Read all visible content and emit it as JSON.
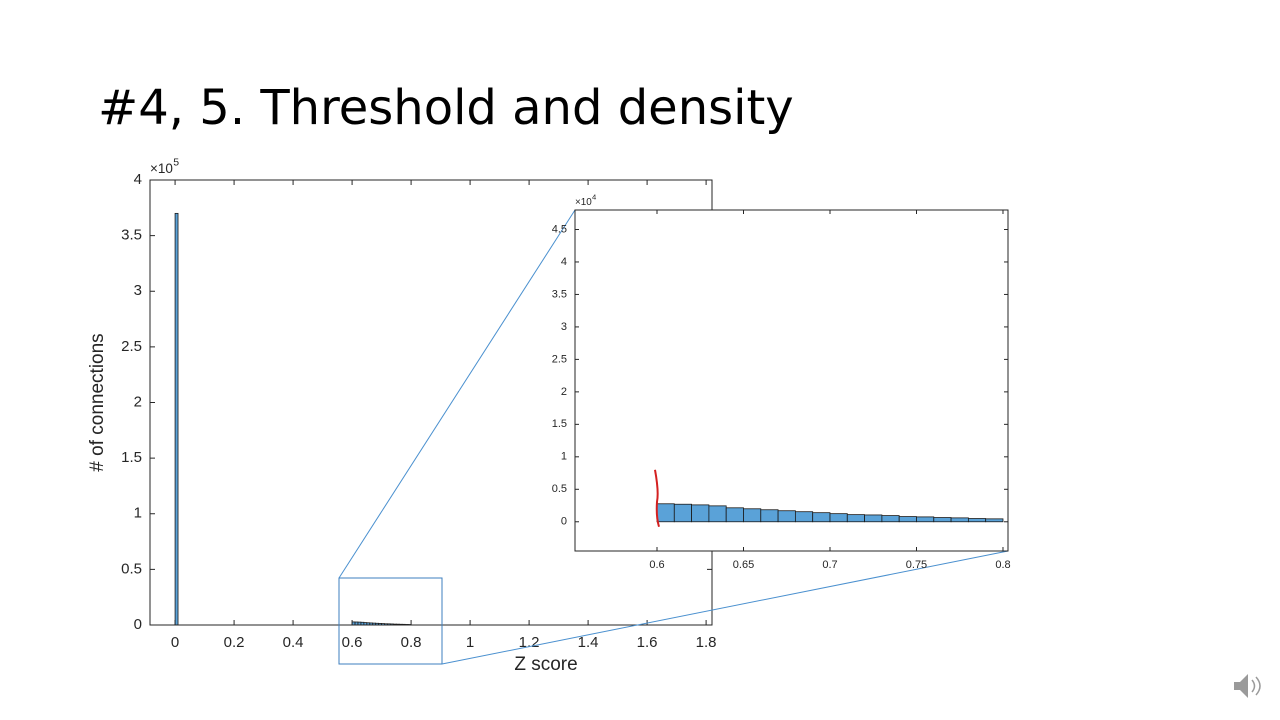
{
  "title": "#4, 5. Threshold and density",
  "chart_data": [
    {
      "type": "histogram",
      "xlabel": "Z score",
      "ylabel": "# of connections",
      "y_multiplier": "×10",
      "y_exponent": "5",
      "bins": [
        0,
        0.01,
        0.6,
        0.61,
        0.62,
        0.63,
        0.64,
        0.65,
        0.66,
        0.67,
        0.68,
        0.69,
        0.7,
        0.71,
        0.72,
        0.73,
        0.74,
        0.75,
        0.76,
        0.77,
        0.78,
        0.79,
        0.8
      ],
      "values": [
        370000,
        0,
        2770,
        2700,
        2600,
        2450,
        2150,
        2000,
        1850,
        1700,
        1550,
        1400,
        1250,
        1100,
        1050,
        950,
        800,
        750,
        650,
        600,
        500,
        450
      ],
      "color": "#5aa2d8",
      "edgecolor": "#1a1a1a",
      "xlim": [
        -0.085,
        1.82
      ],
      "xticks": [
        0,
        0.2,
        0.4,
        0.6,
        0.8,
        1,
        1.2,
        1.4,
        1.6,
        1.8
      ],
      "ylim": [
        0,
        400000
      ],
      "yticks": [
        {
          "value": 0,
          "label": "0"
        },
        {
          "value": 50000,
          "label": "0.5"
        },
        {
          "value": 100000,
          "label": "1"
        },
        {
          "value": 150000,
          "label": "1.5"
        },
        {
          "value": 200000,
          "label": "2"
        },
        {
          "value": 250000,
          "label": "2.5"
        },
        {
          "value": 300000,
          "label": "3"
        },
        {
          "value": 350000,
          "label": "3.5"
        },
        {
          "value": 400000,
          "label": "4"
        }
      ]
    },
    {
      "type": "histogram",
      "y_multiplier": "×10",
      "y_exponent": "4",
      "bins": [
        0.55,
        0.56,
        0.57,
        0.58,
        0.59,
        0.6,
        0.61,
        0.62,
        0.63,
        0.64,
        0.65,
        0.66,
        0.67,
        0.68,
        0.69,
        0.7,
        0.71,
        0.72,
        0.73,
        0.74,
        0.75,
        0.76,
        0.77,
        0.78,
        0.79,
        0.8
      ],
      "values": [
        0,
        0,
        0,
        0,
        0,
        2770,
        2700,
        2600,
        2450,
        2150,
        2000,
        1850,
        1700,
        1550,
        1400,
        1250,
        1100,
        1050,
        950,
        800,
        750,
        650,
        600,
        500,
        450
      ],
      "color": "#5aa2d8",
      "edgecolor": "#1a1a1a",
      "threshold": 0.6,
      "threshold_color": "#d42020",
      "xlim": [
        0.5526,
        0.8029
      ],
      "xticks": [
        0.6,
        0.65,
        0.7,
        0.75,
        0.8
      ],
      "ylim": [
        -4500,
        48000
      ],
      "yticks": [
        {
          "value": 0,
          "label": "0"
        },
        {
          "value": 5000,
          "label": "0.5"
        },
        {
          "value": 10000,
          "label": "1"
        },
        {
          "value": 15000,
          "label": "1.5"
        },
        {
          "value": 20000,
          "label": "2"
        },
        {
          "value": 25000,
          "label": "2.5"
        },
        {
          "value": 30000,
          "label": "3"
        },
        {
          "value": 35000,
          "label": "3.5"
        },
        {
          "value": 40000,
          "label": "4"
        },
        {
          "value": 45000,
          "label": "4.5"
        }
      ]
    }
  ]
}
